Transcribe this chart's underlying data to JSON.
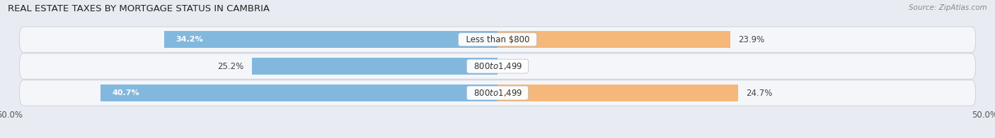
{
  "title": "REAL ESTATE TAXES BY MORTGAGE STATUS IN CAMBRIA",
  "source": "Source: ZipAtlas.com",
  "rows": [
    {
      "label": "Less than $800",
      "without_mortgage": 34.2,
      "with_mortgage": 23.9
    },
    {
      "label": "$800 to $1,499",
      "without_mortgage": 25.2,
      "with_mortgage": 0.0
    },
    {
      "label": "$800 to $1,499",
      "without_mortgage": 40.7,
      "with_mortgage": 24.7
    }
  ],
  "xlim": 50.0,
  "color_without": "#82b8de",
  "color_with": "#f5b87a",
  "bg_figure": "#e8ecf2",
  "bg_row_dark": "#dce2ec",
  "bg_row_light": "#e8ecf2",
  "label_fontsize": 8.5,
  "pct_fontsize_inside": 8.0,
  "title_fontsize": 9.5,
  "source_fontsize": 7.5,
  "legend_fontsize": 8.5,
  "bar_height": 0.62,
  "tick_label_left": "50.0%",
  "tick_label_right": "50.0%"
}
